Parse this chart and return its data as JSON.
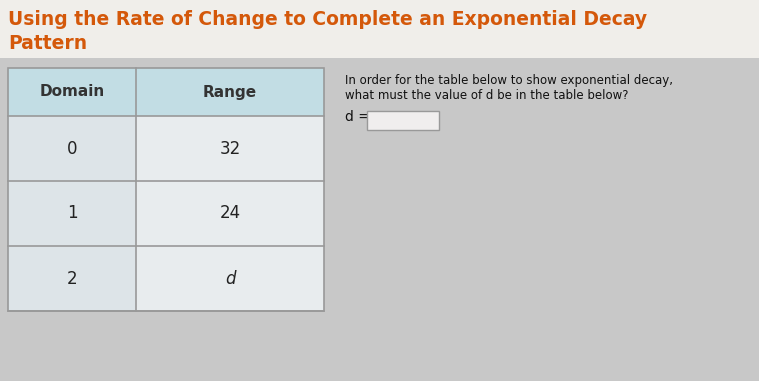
{
  "title_line1": "Using the Rate of Change to Complete an Exponential Decay",
  "title_line2": "Pattern",
  "title_color": "#d4580a",
  "title_fontsize": 13.5,
  "header_bg": "#c2dde4",
  "row_left_bg": "#dde4e8",
  "row_right_bg": "#e8ecee",
  "table_border_color": "#999999",
  "header_labels": [
    "Domain",
    "Range"
  ],
  "rows": [
    [
      "0",
      "32"
    ],
    [
      "1",
      "24"
    ],
    [
      "2",
      "d"
    ]
  ],
  "question_text_line1": "In order for the table below to show exponential decay,",
  "question_text_line2": "what must the value of d be in the table below?",
  "question_var": "d =",
  "input_box_color": "#f0eeee",
  "bg_color": "#c8c8c8",
  "title_bg_color": "#f0eeea",
  "content_bg_color": "#c8c8c8"
}
